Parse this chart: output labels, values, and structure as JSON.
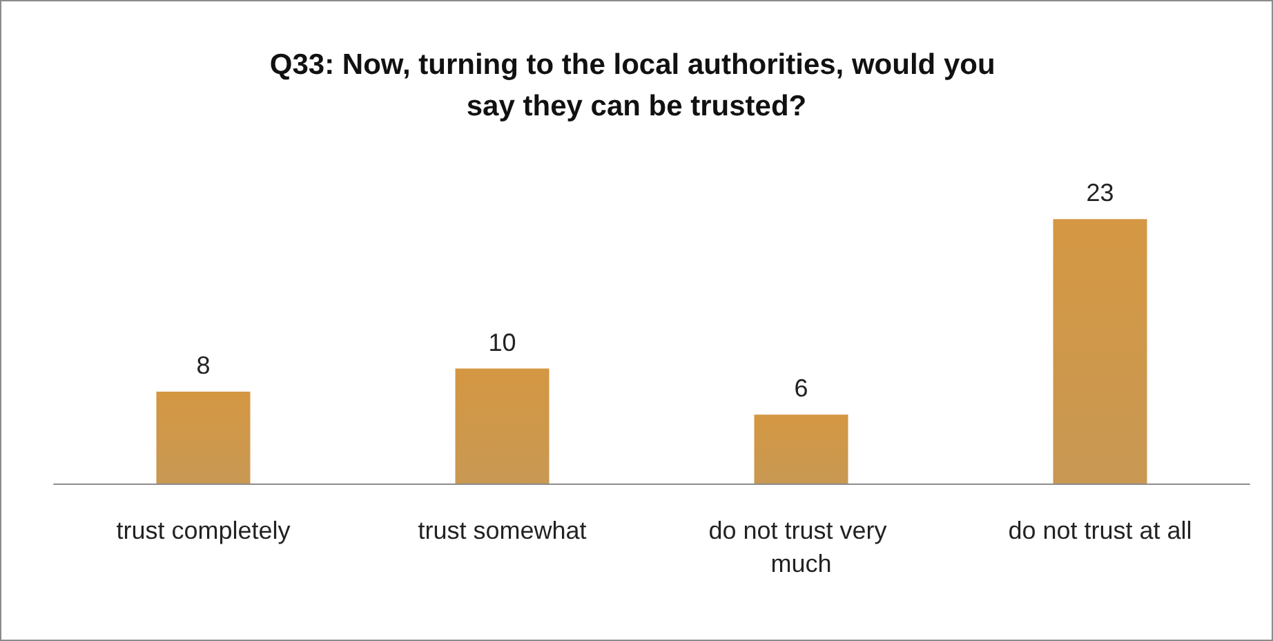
{
  "chart_data": {
    "type": "bar",
    "title": "Q33: Now, turning to the local authorities, would you say they can be trusted?",
    "categories": [
      "trust completely",
      "trust somewhat",
      "do not trust very much",
      "do not trust at all"
    ],
    "values": [
      8,
      10,
      6,
      23
    ],
    "color": "#c18a3c",
    "data_labels": true
  }
}
